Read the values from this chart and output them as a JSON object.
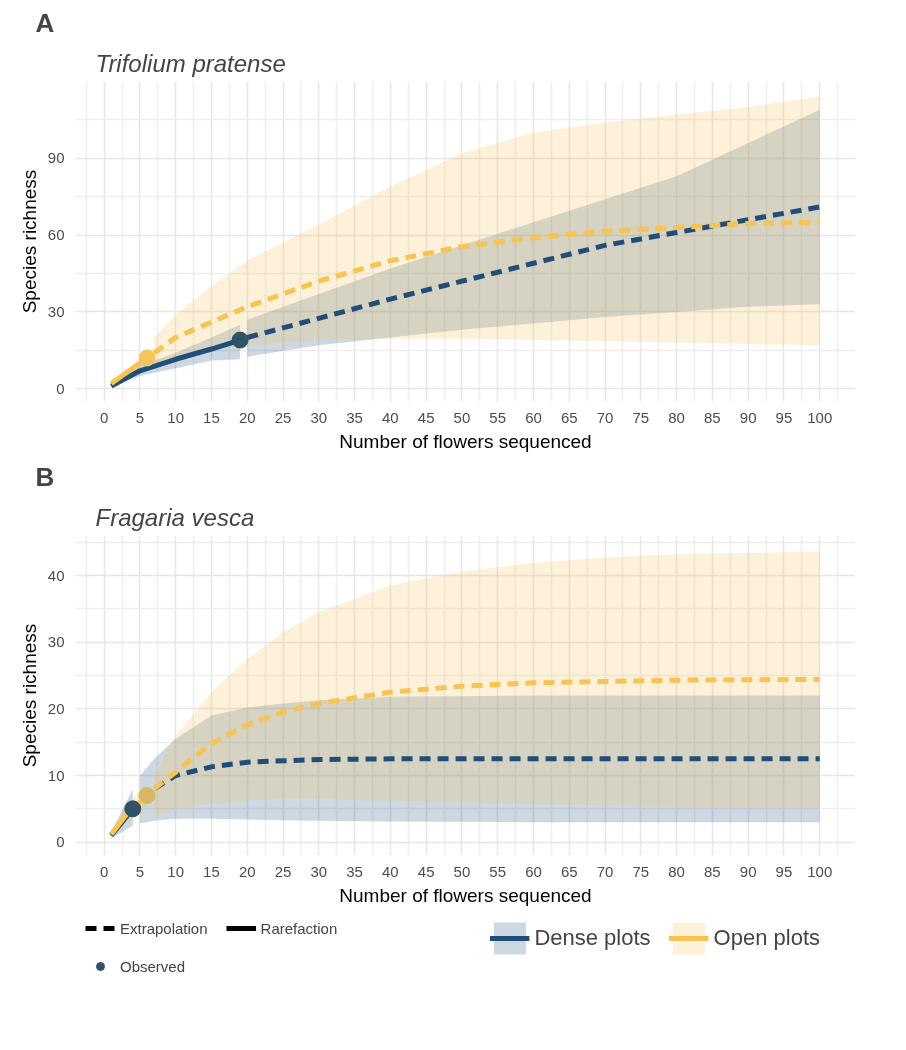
{
  "chart_data": [
    {
      "type": "line",
      "title": "A",
      "subtitle": "Trifolium pratense",
      "xlabel": "Number of flowers sequenced",
      "ylabel": "Species richness",
      "xlim": [
        -4,
        105
      ],
      "ylim": [
        -5,
        120
      ],
      "xticks": [
        0,
        5,
        10,
        15,
        20,
        25,
        30,
        35,
        40,
        45,
        50,
        55,
        60,
        65,
        70,
        75,
        80,
        85,
        90,
        95,
        100
      ],
      "yticks": [
        0,
        30,
        60,
        90
      ],
      "grid": true,
      "series": [
        {
          "color": "#1f4e79",
          "line_style": "solid",
          "x": [
            1,
            5,
            10,
            15,
            19
          ],
          "values": [
            1,
            7,
            11.5,
            15.5,
            19
          ],
          "lower": [
            1,
            5,
            8,
            11,
            11.5
          ],
          "upper": [
            1,
            9,
            14,
            20,
            25
          ]
        },
        {
          "color": "#1f4e79",
          "line_style": "dashed",
          "x": [
            20,
            30,
            40,
            50,
            60,
            70,
            80,
            90,
            100
          ],
          "values": [
            20,
            27.5,
            35,
            42,
            49,
            56,
            61,
            66,
            71
          ],
          "lower": [
            12.5,
            17,
            20,
            23,
            25.5,
            28,
            30,
            32,
            33
          ],
          "upper": [
            27,
            37,
            47,
            56,
            65,
            74,
            83,
            96,
            109
          ]
        },
        {
          "color": "#f8c350",
          "line_style": "solid",
          "x": [
            1,
            3,
            6
          ],
          "values": [
            2,
            6,
            12
          ],
          "lower": [
            1.5,
            5,
            10
          ],
          "upper": [
            2.5,
            7,
            14
          ]
        },
        {
          "color": "#f8c350",
          "line_style": "dashed",
          "x": [
            7,
            10,
            15,
            20,
            30,
            40,
            50,
            60,
            70,
            80,
            90,
            100
          ],
          "values": [
            14,
            20,
            26,
            32,
            42,
            50,
            55.5,
            59,
            61.5,
            63,
            64.5,
            65
          ],
          "lower": [
            9,
            12,
            15,
            17,
            19,
            19.5,
            19.5,
            19,
            18.5,
            18,
            17.5,
            17
          ],
          "upper": [
            20,
            29,
            40,
            50,
            64,
            79,
            92,
            100,
            104,
            107,
            110,
            114
          ]
        },
        {
          "type": "scatter",
          "marker": "circle",
          "color": "#2e5266",
          "x": [
            19
          ],
          "values": [
            19
          ]
        },
        {
          "type": "scatter",
          "marker": "circle",
          "color": "#f5c55c",
          "x": [
            6
          ],
          "values": [
            12
          ]
        }
      ]
    },
    {
      "type": "line",
      "title": "B",
      "subtitle": "Fragaria vesca",
      "xlabel": "Number of flowers sequenced",
      "ylabel": "Species richness",
      "xlim": [
        -4,
        105
      ],
      "ylim": [
        -2,
        46
      ],
      "xticks": [
        0,
        5,
        10,
        15,
        20,
        25,
        30,
        35,
        40,
        45,
        50,
        55,
        60,
        65,
        70,
        75,
        80,
        85,
        90,
        95,
        100
      ],
      "yticks": [
        0,
        10,
        20,
        30,
        40
      ],
      "grid": true,
      "legend": "bottom",
      "annotations": [
        "Extrapolation",
        "Rarefaction"
      ],
      "series": [
        {
          "name": "Dense plots",
          "color": "#1f4e79",
          "line_style": "solid",
          "x": [
            1,
            4
          ],
          "values": [
            1,
            5
          ],
          "lower": [
            0.5,
            2.5
          ],
          "upper": [
            1.5,
            8
          ]
        },
        {
          "color": "#1f4e79",
          "line_style": "dashed",
          "x": [
            5,
            7,
            10,
            15,
            20,
            25,
            30,
            40,
            60,
            80,
            100
          ],
          "values": [
            6.5,
            8,
            10,
            11.3,
            12,
            12.2,
            12.4,
            12.5,
            12.5,
            12.5,
            12.5
          ],
          "lower": [
            2.8,
            3.2,
            3.5,
            3.5,
            3.4,
            3.3,
            3.2,
            3.1,
            3,
            3,
            3
          ],
          "upper": [
            10,
            12.5,
            15.5,
            19,
            20.2,
            20.8,
            21.3,
            21.8,
            22,
            22,
            22
          ]
        },
        {
          "name": "Open plots",
          "color": "#f8c350",
          "line_style": "solid",
          "x": [
            1,
            3,
            6
          ],
          "values": [
            1.2,
            4,
            7
          ],
          "lower": [
            0.5,
            2.5,
            5
          ],
          "upper": [
            2,
            5.5,
            9
          ]
        },
        {
          "color": "#f8c350",
          "line_style": "dashed",
          "x": [
            7,
            10,
            15,
            20,
            25,
            30,
            40,
            50,
            60,
            70,
            80,
            100
          ],
          "values": [
            8,
            10.5,
            14.8,
            17.6,
            19.5,
            20.8,
            22.5,
            23.4,
            23.9,
            24.1,
            24.3,
            24.4
          ],
          "lower": [
            4,
            5,
            5.8,
            6.3,
            6.5,
            6.5,
            6.2,
            6,
            5.7,
            5.5,
            5.3,
            5.1
          ],
          "upper": [
            10,
            16,
            22.5,
            27.5,
            31.5,
            34.5,
            38.5,
            40.6,
            41.9,
            42.7,
            43.2,
            43.6
          ]
        },
        {
          "type": "scatter",
          "name": "Observed",
          "marker": "circle",
          "color": "#2e5266",
          "x": [
            4
          ],
          "values": [
            5
          ]
        },
        {
          "type": "scatter",
          "marker": "circle",
          "color": "#d9b760",
          "x": [
            6
          ],
          "values": [
            7
          ]
        }
      ]
    }
  ]
}
